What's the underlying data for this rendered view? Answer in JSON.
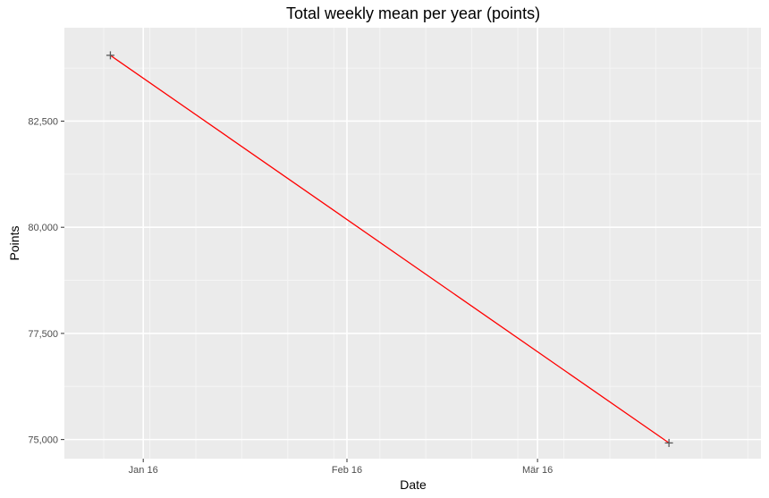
{
  "chart_data": {
    "type": "line",
    "title": "Total weekly mean per year (points)",
    "xlabel": "Date",
    "ylabel": "Points",
    "x_ticks": [
      {
        "date": "2016-01-16",
        "label": "Jan 16"
      },
      {
        "date": "2016-02-16",
        "label": "Feb 16"
      },
      {
        "date": "2016-03-16",
        "label": "Mär 16"
      }
    ],
    "y_ticks": [
      {
        "value": 75000,
        "label": "75,000"
      },
      {
        "value": 77500,
        "label": "77,500"
      },
      {
        "value": 80000,
        "label": "80,000"
      },
      {
        "value": 82500,
        "label": "82,500"
      }
    ],
    "xlim": [
      "2016-01-04",
      "2016-04-19"
    ],
    "ylim": [
      74550,
      84700
    ],
    "grid": true,
    "legend": "none",
    "series": [
      {
        "color": "#ff0000",
        "marker": "plus",
        "marker_color": "#595959",
        "points": [
          {
            "x": "2016-01-11",
            "y": 84050
          },
          {
            "x": "2016-04-05",
            "y": 74920
          }
        ]
      }
    ]
  }
}
